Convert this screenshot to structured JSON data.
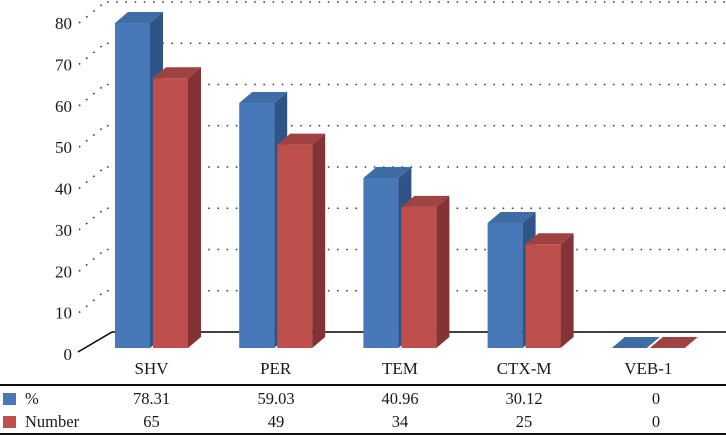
{
  "chart_data": {
    "type": "bar",
    "style": "3d-clustered-column",
    "title": "",
    "xlabel": "",
    "ylabel": "",
    "categories": [
      "SHV",
      "PER",
      "TEM",
      "CTX-M",
      "VEB-1"
    ],
    "series": [
      {
        "name": "%",
        "values": [
          78.31,
          59.03,
          40.96,
          30.12,
          0
        ],
        "display": [
          "78.31",
          "59.03",
          "40.96",
          "30.12",
          "0"
        ],
        "color_front": "#4878B8",
        "color_top": "#3E6CA4",
        "color_side": "#2E5586"
      },
      {
        "name": "Number",
        "values": [
          65,
          49,
          34,
          25,
          0
        ],
        "display": [
          "65",
          "49",
          "34",
          "25",
          "0"
        ],
        "color_front": "#BE4F4D",
        "color_top": "#9E4341",
        "color_side": "#823434"
      }
    ],
    "ylim": [
      0,
      80
    ],
    "ytick_step": 10,
    "yticks": [
      "0",
      "10",
      "20",
      "30",
      "40",
      "50",
      "60",
      "70",
      "80"
    ],
    "grid": "dotted-horizontal",
    "legend_position": "table-left-column",
    "grid_color": "#3d3d3d",
    "axis_color": "#000000"
  }
}
